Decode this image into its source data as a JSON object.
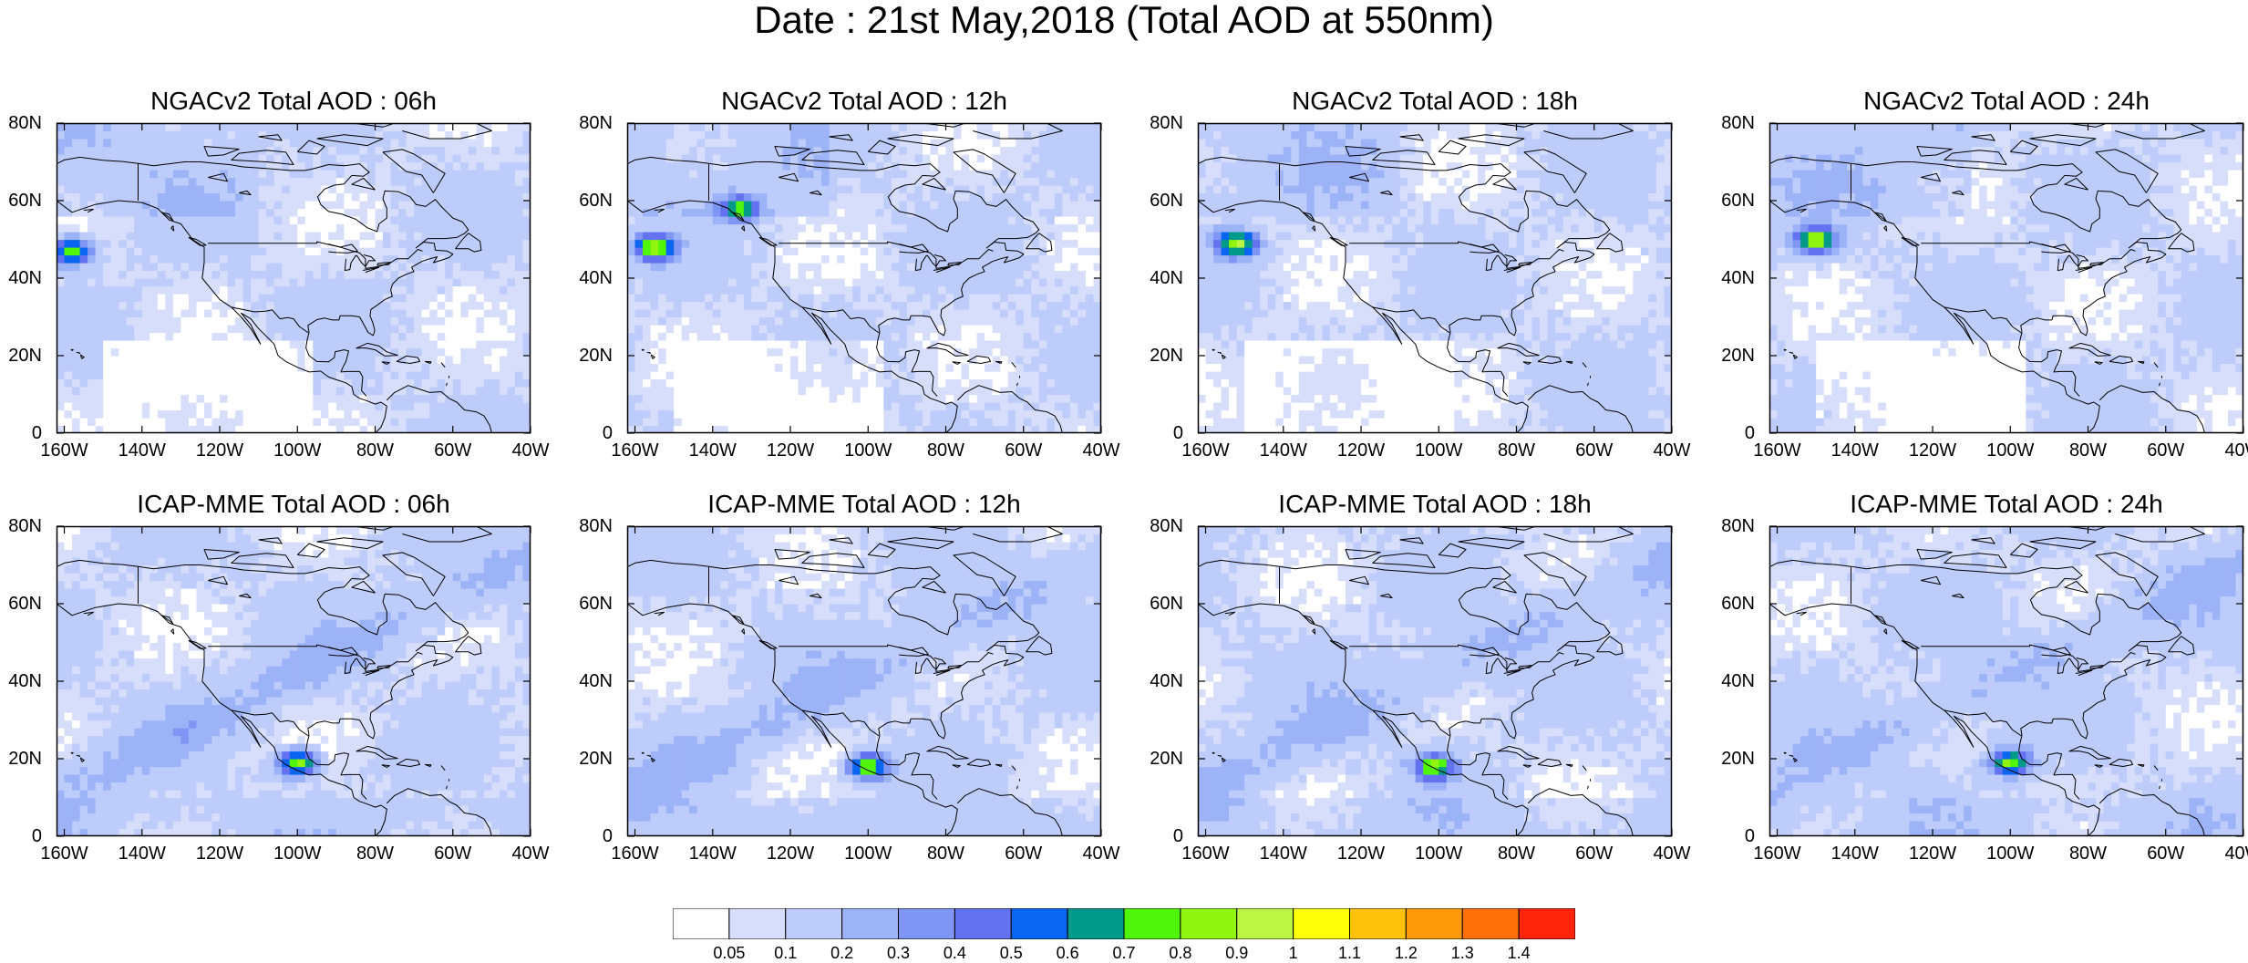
{
  "title": "Date : 21st May,2018 (Total AOD at 550nm)",
  "lon_ticks": [
    "160W",
    "140W",
    "120W",
    "100W",
    "80W",
    "60W",
    "40W"
  ],
  "lat_ticks": [
    "0",
    "20N",
    "40N",
    "60N",
    "80N"
  ],
  "panels": [
    {
      "title": "NGACv2 Total AOD : 06h",
      "model": "NGACv2",
      "hour": 6,
      "plume": [
        -158,
        47,
        0.75
      ],
      "hotspot": null
    },
    {
      "title": "NGACv2 Total AOD : 12h",
      "model": "NGACv2",
      "hour": 12,
      "plume": [
        -155,
        48,
        0.8
      ],
      "hotspot": [
        -133,
        58,
        0.6
      ]
    },
    {
      "title": "NGACv2 Total AOD : 18h",
      "model": "NGACv2",
      "hour": 18,
      "plume": [
        -152,
        49,
        0.82
      ],
      "hotspot": null
    },
    {
      "title": "NGACv2 Total AOD : 24h",
      "model": "NGACv2",
      "hour": 24,
      "plume": [
        -150,
        50,
        0.85
      ],
      "hotspot": null
    },
    {
      "title": "ICAP-MME Total AOD : 06h",
      "model": "ICAP-MME",
      "hour": 6,
      "plume": null,
      "hotspot": [
        -100,
        19,
        0.8
      ]
    },
    {
      "title": "ICAP-MME Total AOD : 12h",
      "model": "ICAP-MME",
      "hour": 12,
      "plume": null,
      "hotspot": [
        -100,
        18,
        0.78
      ]
    },
    {
      "title": "ICAP-MME Total AOD : 18h",
      "model": "ICAP-MME",
      "hour": 18,
      "plume": null,
      "hotspot": [
        -101,
        18,
        0.72
      ]
    },
    {
      "title": "ICAP-MME Total AOD : 24h",
      "model": "ICAP-MME",
      "hour": 24,
      "plume": null,
      "hotspot": [
        -100,
        19,
        0.75
      ]
    }
  ],
  "colorbar": {
    "colors": [
      "#ffffff",
      "#d6defc",
      "#bdccfa",
      "#9db3f7",
      "#8096f4",
      "#6272f0",
      "#0a66f2",
      "#00998a",
      "#50f50a",
      "#8ff50f",
      "#bdf545",
      "#ffff0a",
      "#ffc20a",
      "#ff9a0a",
      "#ff700a",
      "#ff240a"
    ],
    "labels": [
      "0.05",
      "0.1",
      "0.2",
      "0.3",
      "0.4",
      "0.5",
      "0.6",
      "0.7",
      "0.8",
      "0.9",
      "1",
      "1.1",
      "1.2",
      "1.3",
      "1.4"
    ]
  }
}
